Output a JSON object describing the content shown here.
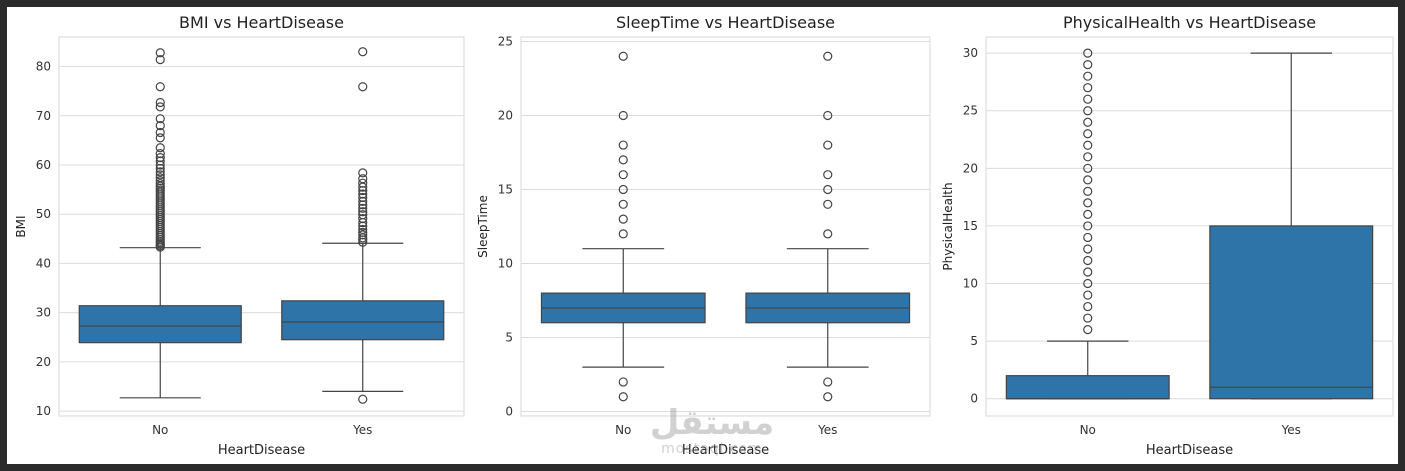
{
  "chart_data": [
    {
      "type": "box",
      "title": "BMI vs HeartDisease",
      "xlabel": "HeartDisease",
      "ylabel": "BMI",
      "categories": [
        "No",
        "Yes"
      ],
      "ylim": [
        9,
        86
      ],
      "yticks": [
        10,
        20,
        30,
        40,
        50,
        60,
        70,
        80
      ],
      "color": "#2e74a8",
      "boxes": [
        {
          "category": "No",
          "whisker_low": 12.7,
          "q1": 23.9,
          "median": 27.3,
          "q3": 31.4,
          "whisker_high": 43.2,
          "outliers": [
            43.3,
            43.6,
            43.9,
            44.2,
            44.5,
            44.9,
            45.3,
            45.7,
            46.1,
            46.5,
            46.9,
            47.3,
            47.7,
            48.1,
            48.5,
            48.9,
            49.3,
            49.7,
            50.1,
            50.5,
            50.9,
            51.3,
            51.7,
            52.1,
            52.5,
            52.9,
            53.3,
            53.7,
            54.1,
            54.5,
            54.9,
            55.3,
            55.7,
            56.2,
            56.8,
            57.4,
            58.0,
            58.6,
            59.3,
            60.0,
            60.8,
            61.5,
            62.3,
            63.5,
            65.5,
            66.6,
            68.0,
            69.4,
            71.8,
            72.7,
            75.9,
            81.4,
            82.8
          ]
        },
        {
          "category": "Yes",
          "whisker_low": 14.0,
          "q1": 24.5,
          "median": 28.1,
          "q3": 32.4,
          "whisker_high": 44.1,
          "outliers": [
            12.4,
            44.3,
            44.8,
            45.2,
            45.8,
            46.3,
            46.9,
            47.6,
            48.3,
            49.1,
            49.9,
            50.5,
            51.2,
            51.9,
            52.6,
            53.4,
            54.1,
            54.8,
            55.5,
            56.3,
            57.2,
            58.4,
            75.9,
            83.0
          ]
        }
      ]
    },
    {
      "type": "box",
      "title": "SleepTime vs HeartDisease",
      "xlabel": "HeartDisease",
      "ylabel": "SleepTime",
      "categories": [
        "No",
        "Yes"
      ],
      "ylim": [
        -0.3,
        25.3
      ],
      "yticks": [
        0,
        5,
        10,
        15,
        20,
        25
      ],
      "color": "#2e74a8",
      "boxes": [
        {
          "category": "No",
          "whisker_low": 3,
          "q1": 6,
          "median": 7,
          "q3": 8,
          "whisker_high": 11,
          "outliers": [
            1,
            2,
            12,
            13,
            14,
            15,
            16,
            17,
            18,
            20,
            24
          ]
        },
        {
          "category": "Yes",
          "whisker_low": 3,
          "q1": 6,
          "median": 7,
          "q3": 8,
          "whisker_high": 11,
          "outliers": [
            1,
            2,
            12,
            14,
            15,
            16,
            18,
            20,
            24
          ]
        }
      ]
    },
    {
      "type": "box",
      "title": "PhysicalHealth vs HeartDisease",
      "xlabel": "HeartDisease",
      "ylabel": "PhysicalHealth",
      "categories": [
        "No",
        "Yes"
      ],
      "ylim": [
        -1.5,
        31.4
      ],
      "yticks": [
        0,
        5,
        10,
        15,
        20,
        25,
        30
      ],
      "color": "#2e74a8",
      "boxes": [
        {
          "category": "No",
          "whisker_low": 0,
          "q1": 0,
          "median": 0,
          "q3": 2,
          "whisker_high": 5,
          "outliers": [
            6,
            7,
            8,
            9,
            10,
            11,
            12,
            13,
            14,
            15,
            16,
            17,
            18,
            19,
            20,
            21,
            22,
            23,
            24,
            25,
            26,
            27,
            28,
            29,
            30
          ]
        },
        {
          "category": "Yes",
          "whisker_low": 0,
          "q1": 0,
          "median": 1,
          "q3": 15,
          "whisker_high": 30,
          "outliers": []
        }
      ]
    }
  ],
  "watermark": {
    "arabic": "مستقل",
    "latin": "mostaql.com"
  }
}
